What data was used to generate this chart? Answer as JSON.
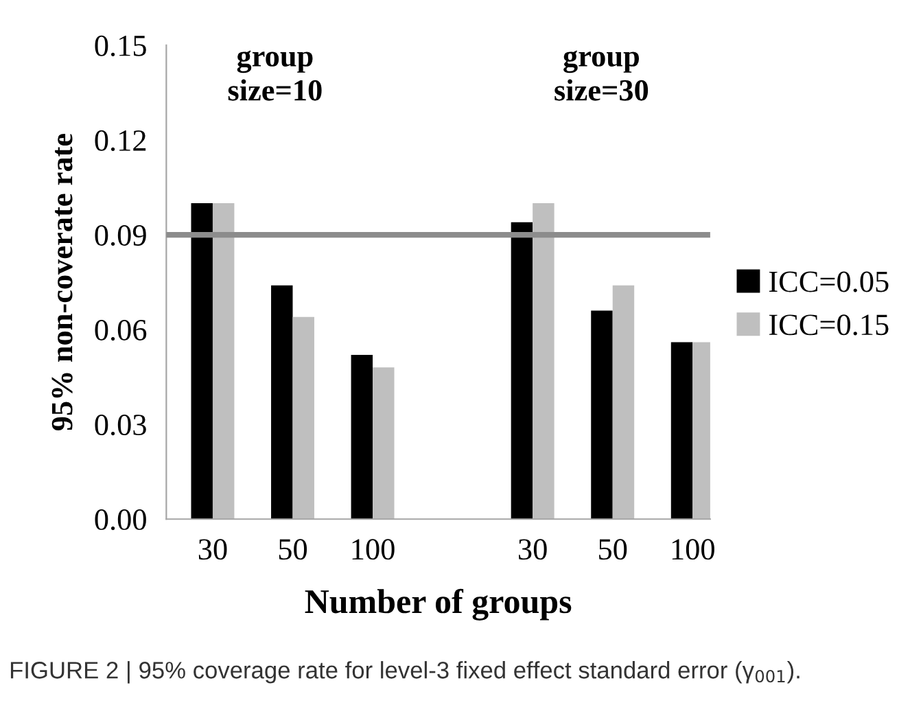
{
  "chart_data": {
    "type": "bar",
    "xlabel": "Number of groups",
    "ylabel": "95% non-coverate rate",
    "categories": [
      "30",
      "50",
      "100",
      null,
      "30",
      "50",
      "100"
    ],
    "series": [
      {
        "name": "ICC=0.05",
        "color": "#000000",
        "values": [
          0.1,
          0.074,
          0.052,
          null,
          0.094,
          0.066,
          0.056
        ]
      },
      {
        "name": "ICC=0.15",
        "color": "#bfbfbf",
        "values": [
          0.1,
          0.064,
          0.048,
          null,
          0.1,
          0.074,
          0.056
        ]
      }
    ],
    "ylim": [
      0,
      0.15
    ],
    "yticks": [
      {
        "value": 0,
        "label": "0.00"
      },
      {
        "value": 0.03,
        "label": "0.03"
      },
      {
        "value": 0.06,
        "label": "0.06"
      },
      {
        "value": 0.09,
        "label": "0.09"
      },
      {
        "value": 0.12,
        "label": "0.12"
      },
      {
        "value": 0.15,
        "label": "0.15"
      }
    ],
    "ref_lines": [
      {
        "axis": "y",
        "value": 0.09,
        "color": "#8c8c8c"
      }
    ],
    "annotations": [
      "group\nsize=10",
      "group\nsize=30",
      "FIGURE 2 | 95% coverage rate for level-3 fixed effect standard error (γ$_{001}$)."
    ],
    "legend": "right",
    "grid": false
  }
}
